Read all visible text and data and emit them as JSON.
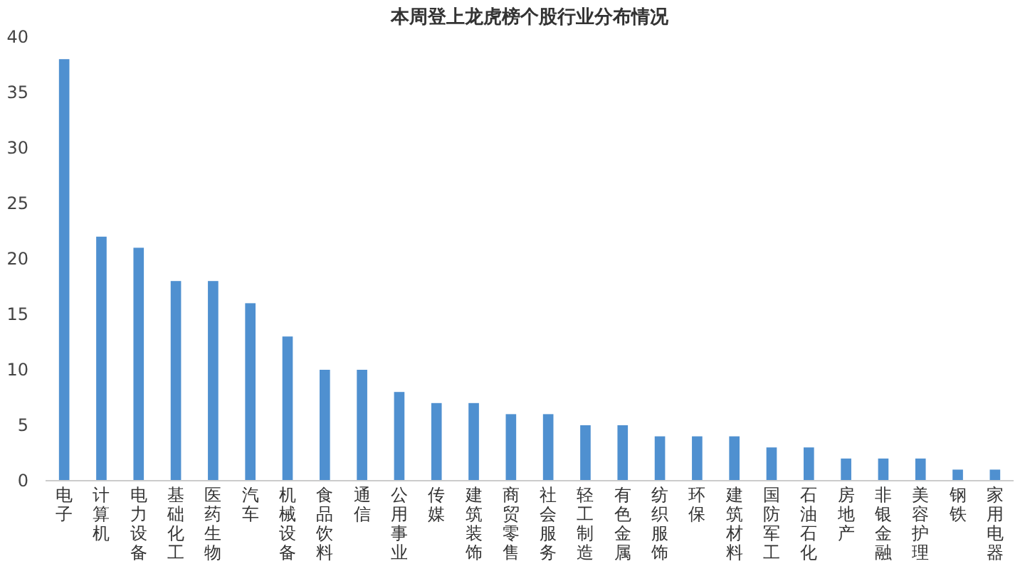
{
  "chart_data": {
    "type": "bar",
    "title": "本周登上龙虎榜个股行业分布情况",
    "categories": [
      "电子",
      "计算机",
      "电力设备",
      "基础化工",
      "医药生物",
      "汽车",
      "机械设备",
      "食品饮料",
      "通信",
      "公用事业",
      "传媒",
      "建筑装饰",
      "商贸零售",
      "社会服务",
      "轻工制造",
      "有色金属",
      "纺织服饰",
      "环保",
      "建筑材料",
      "国防军工",
      "石油石化",
      "房地产",
      "非银金融",
      "美容护理",
      "钢铁",
      "家用电器"
    ],
    "values": [
      38,
      22,
      21,
      18,
      18,
      16,
      13,
      10,
      10,
      8,
      7,
      7,
      6,
      6,
      5,
      5,
      4,
      4,
      4,
      3,
      3,
      2,
      2,
      2,
      1,
      1
    ],
    "color": "#4f90d0",
    "ylim": [
      0,
      40
    ],
    "yticks": [
      0,
      5,
      10,
      15,
      20,
      25,
      30,
      35,
      40
    ],
    "grid": false
  }
}
